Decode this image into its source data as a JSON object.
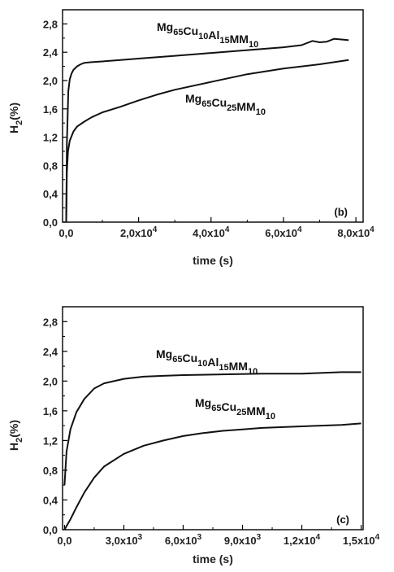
{
  "chart_data": [
    {
      "type": "line",
      "panel_label": "(b)",
      "xlabel": "time (s)",
      "ylabel": "H",
      "ylabel_sub": "2",
      "ylabel_suffix": "(%)",
      "xlim": [
        -1000,
        82000
      ],
      "ylim": [
        0.0,
        3.0
      ],
      "xticks": [
        0,
        20000,
        40000,
        60000,
        80000
      ],
      "xtick_labels": [
        {
          "base": "0,0",
          "exp": ""
        },
        {
          "base": "2,0x10",
          "exp": "4"
        },
        {
          "base": "4,0x10",
          "exp": "4"
        },
        {
          "base": "6,0x10",
          "exp": "4"
        },
        {
          "base": "8,0x10",
          "exp": "4"
        }
      ],
      "yticks": [
        0.0,
        0.4,
        0.8,
        1.2,
        1.6,
        2.0,
        2.4,
        2.8
      ],
      "ytick_labels": [
        "0,0",
        "0,4",
        "0,8",
        "1,2",
        "1,6",
        "2,0",
        "2,4",
        "2,8"
      ],
      "series": [
        {
          "label_parts": [
            [
              "Mg",
              "65"
            ],
            [
              "Cu",
              "10"
            ],
            [
              "Al",
              "15"
            ],
            [
              "MM",
              "10"
            ]
          ],
          "x": [
            0,
            200,
            600,
            1000,
            1500,
            2000,
            3000,
            4000,
            5000,
            7000,
            10000,
            15000,
            20000,
            30000,
            40000,
            50000,
            60000,
            65000,
            68000,
            70000,
            72000,
            74000,
            76000,
            78000
          ],
          "y": [
            0.0,
            1.1,
            1.85,
            2.02,
            2.1,
            2.15,
            2.2,
            2.23,
            2.25,
            2.26,
            2.27,
            2.29,
            2.31,
            2.35,
            2.39,
            2.43,
            2.47,
            2.5,
            2.56,
            2.54,
            2.55,
            2.59,
            2.58,
            2.57
          ]
        },
        {
          "label_parts": [
            [
              "Mg",
              "65"
            ],
            [
              "Cu",
              "25"
            ],
            [
              "MM",
              "10"
            ]
          ],
          "x": [
            0,
            200,
            500,
            1000,
            2000,
            3000,
            5000,
            7000,
            10000,
            15000,
            20000,
            25000,
            30000,
            40000,
            50000,
            60000,
            70000,
            78000
          ],
          "y": [
            0.0,
            0.7,
            1.0,
            1.15,
            1.28,
            1.35,
            1.42,
            1.48,
            1.55,
            1.63,
            1.72,
            1.8,
            1.87,
            1.98,
            2.09,
            2.17,
            2.23,
            2.29
          ]
        }
      ]
    },
    {
      "type": "line",
      "panel_label": "(c)",
      "xlabel": "time (s)",
      "ylabel": "H",
      "ylabel_sub": "2",
      "ylabel_suffix": "(%)",
      "xlim": [
        -100,
        15100
      ],
      "ylim": [
        0.0,
        3.0
      ],
      "xticks": [
        0,
        3000,
        6000,
        9000,
        12000,
        15000
      ],
      "xtick_labels": [
        {
          "base": "0,0",
          "exp": ""
        },
        {
          "base": "3,0x10",
          "exp": "3"
        },
        {
          "base": "6,0x10",
          "exp": "3"
        },
        {
          "base": "9,0x10",
          "exp": "3"
        },
        {
          "base": "1,2x10",
          "exp": "4"
        },
        {
          "base": "1,5x10",
          "exp": "4"
        }
      ],
      "yticks": [
        0.0,
        0.4,
        0.8,
        1.2,
        1.6,
        2.0,
        2.4,
        2.8
      ],
      "ytick_labels": [
        "0,0",
        "0,4",
        "0,8",
        "1,2",
        "1,6",
        "2,0",
        "2,4",
        "2,8"
      ],
      "series": [
        {
          "label_parts": [
            [
              "Mg",
              "65"
            ],
            [
              "Cu",
              "10"
            ],
            [
              "Al",
              "15"
            ],
            [
              "MM",
              "10"
            ]
          ],
          "x": [
            0,
            100,
            300,
            600,
            1000,
            1500,
            2000,
            3000,
            4000,
            5000,
            6000,
            8000,
            10000,
            12000,
            14000,
            15000
          ],
          "y": [
            0.6,
            1.05,
            1.35,
            1.58,
            1.76,
            1.9,
            1.97,
            2.03,
            2.06,
            2.07,
            2.08,
            2.09,
            2.1,
            2.1,
            2.12,
            2.12
          ]
        },
        {
          "label_parts": [
            [
              "Mg",
              "65"
            ],
            [
              "Cu",
              "25"
            ],
            [
              "MM",
              "10"
            ]
          ],
          "x": [
            0,
            300,
            600,
            1000,
            1500,
            2000,
            3000,
            4000,
            5000,
            6000,
            7000,
            8000,
            9000,
            10000,
            12000,
            14000,
            15000
          ],
          "y": [
            0.0,
            0.14,
            0.3,
            0.5,
            0.7,
            0.85,
            1.02,
            1.13,
            1.2,
            1.26,
            1.3,
            1.33,
            1.35,
            1.37,
            1.39,
            1.41,
            1.43
          ]
        }
      ]
    }
  ]
}
